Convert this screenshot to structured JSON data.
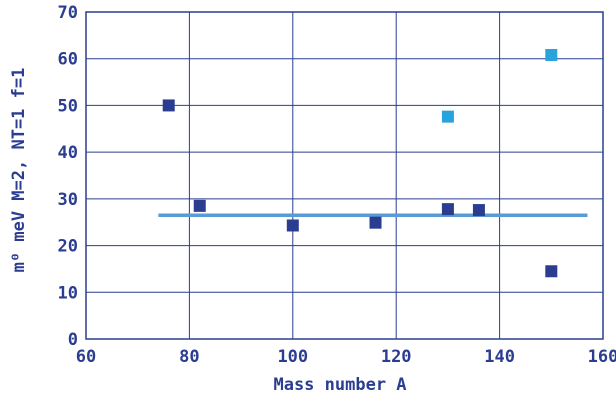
{
  "chart_data": {
    "type": "scatter",
    "xlabel": "Mass number A",
    "ylabel": "m⁰ meV  M=2, NT=1  f=1",
    "xlim": [
      60,
      160
    ],
    "ylim": [
      0,
      70
    ],
    "x_ticks": [
      60,
      80,
      100,
      120,
      140,
      160
    ],
    "y_ticks": [
      0,
      10,
      20,
      30,
      40,
      50,
      60,
      70
    ],
    "grid": true,
    "legend": "none",
    "series": [
      {
        "color": "#2b3d91",
        "points": [
          {
            "x": 76,
            "y": 50
          },
          {
            "x": 82,
            "y": 28.5
          },
          {
            "x": 100,
            "y": 24.3
          },
          {
            "x": 116,
            "y": 24.9
          },
          {
            "x": 130,
            "y": 27.8
          },
          {
            "x": 136,
            "y": 27.6
          },
          {
            "x": 150,
            "y": 14.5
          }
        ]
      },
      {
        "color": "#29a3dc",
        "points": [
          {
            "x": 130,
            "y": 47.6
          },
          {
            "x": 150,
            "y": 60.8
          }
        ]
      }
    ],
    "reference_line": {
      "color": "#5b9bd5",
      "x": [
        74,
        157
      ],
      "y": [
        26.5,
        26.5
      ]
    }
  },
  "colors": {
    "text": "#2b3d91",
    "frame": "#2b3d91",
    "grid": "#2b3d91"
  }
}
